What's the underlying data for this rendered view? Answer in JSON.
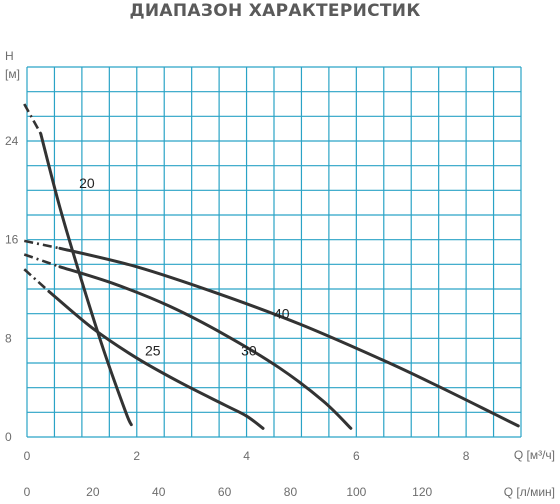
{
  "chart_data": {
    "type": "line",
    "title": "ДИАПАЗОН ХАРАКТЕРИСТИК",
    "ylabel": "H",
    "yunit": "[м]",
    "xlabel": "Q [м³/ч]",
    "x2label": "Q [л/мин]",
    "xlim": [
      0,
      9
    ],
    "ylim": [
      0,
      30
    ],
    "x_ticks": [
      0,
      2,
      4,
      6,
      8
    ],
    "y_ticks": [
      0,
      8,
      16,
      24
    ],
    "x2_ticks": [
      0,
      20,
      40,
      60,
      80,
      100,
      120
    ],
    "x2_factor": 16.6667,
    "grid": true,
    "line_color": "#333333",
    "grid_color": "#2aa3c6",
    "series": [
      {
        "name": "20",
        "label_at": [
          0.95,
          20.2
        ],
        "dash": [
          [
            -0.05,
            27.0
          ],
          [
            0.25,
            24.6
          ]
        ],
        "x": [
          0.25,
          0.6,
          1.0,
          1.4,
          1.8,
          1.9
        ],
        "y": [
          24.6,
          18.6,
          12.6,
          7.0,
          2.0,
          1.0
        ]
      },
      {
        "name": "25",
        "label_at": [
          2.15,
          6.6
        ],
        "dash": [
          [
            -0.05,
            13.6
          ],
          [
            0.4,
            11.8
          ]
        ],
        "x": [
          0.4,
          1.2,
          2.0,
          2.8,
          3.6,
          4.0,
          4.3
        ],
        "y": [
          11.8,
          8.8,
          6.4,
          4.4,
          2.6,
          1.7,
          0.7
        ]
      },
      {
        "name": "30",
        "label_at": [
          3.9,
          6.6
        ],
        "dash": [
          [
            -0.05,
            14.8
          ],
          [
            0.6,
            13.8
          ]
        ],
        "x": [
          0.6,
          1.6,
          2.6,
          3.6,
          4.6,
          5.4,
          5.9
        ],
        "y": [
          13.8,
          12.4,
          10.6,
          8.3,
          5.6,
          2.9,
          0.7
        ]
      },
      {
        "name": "40",
        "label_at": [
          4.5,
          9.6
        ],
        "dash": [
          [
            -0.05,
            15.9
          ],
          [
            0.6,
            15.3
          ]
        ],
        "x": [
          0.6,
          2.0,
          3.5,
          5.0,
          6.5,
          7.5,
          8.5,
          8.95
        ],
        "y": [
          15.3,
          13.8,
          11.6,
          9.1,
          6.2,
          4.1,
          1.9,
          0.9
        ]
      }
    ]
  }
}
